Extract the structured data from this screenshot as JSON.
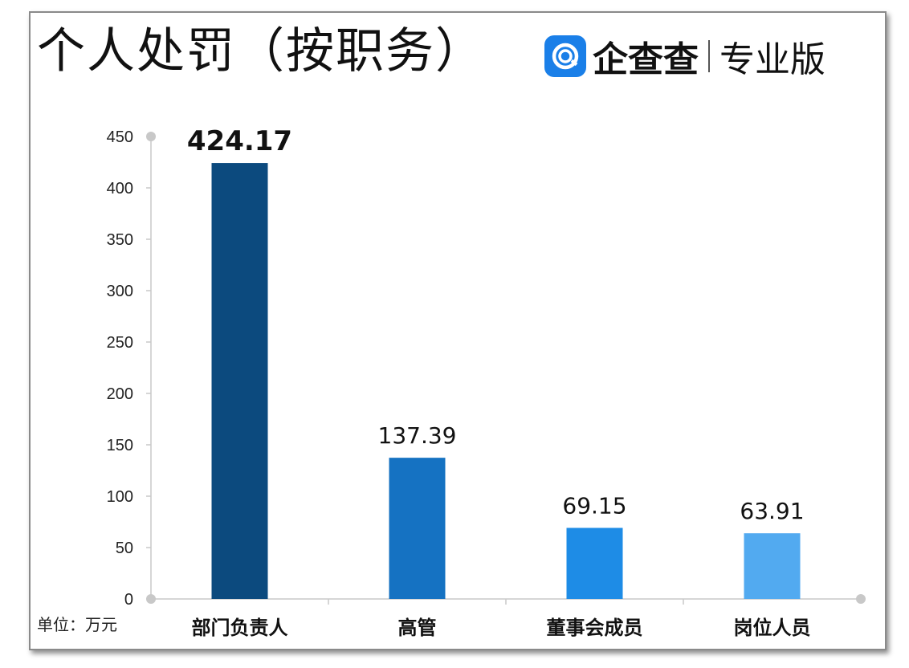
{
  "title": "个人处罚（按职务）",
  "brand": {
    "logo_icon": "qcc-logo-icon",
    "name": "企查查",
    "edition": "专业版",
    "color": "#1a7fe8"
  },
  "unit_label": "单位：万元",
  "chart_data": {
    "type": "bar",
    "title": "个人处罚（按职务）",
    "categories": [
      "部门负责人",
      "高管",
      "董事会成员",
      "岗位人员"
    ],
    "values": [
      424.17,
      137.39,
      69.15,
      63.91
    ],
    "value_labels": [
      "424.17",
      "137.39",
      "69.15",
      "63.91"
    ],
    "bar_colors": [
      "#0c4a7e",
      "#1572c2",
      "#1e8ce6",
      "#52aaf0"
    ],
    "highlight_label_color": "#ee1c25",
    "highlight_index": 0,
    "ylim": [
      0,
      450
    ],
    "yticks": [
      0,
      50,
      100,
      150,
      200,
      250,
      300,
      350,
      400,
      450
    ],
    "xlabel": "",
    "ylabel": "",
    "grid": false,
    "axis_color": "#c8c8c8"
  }
}
